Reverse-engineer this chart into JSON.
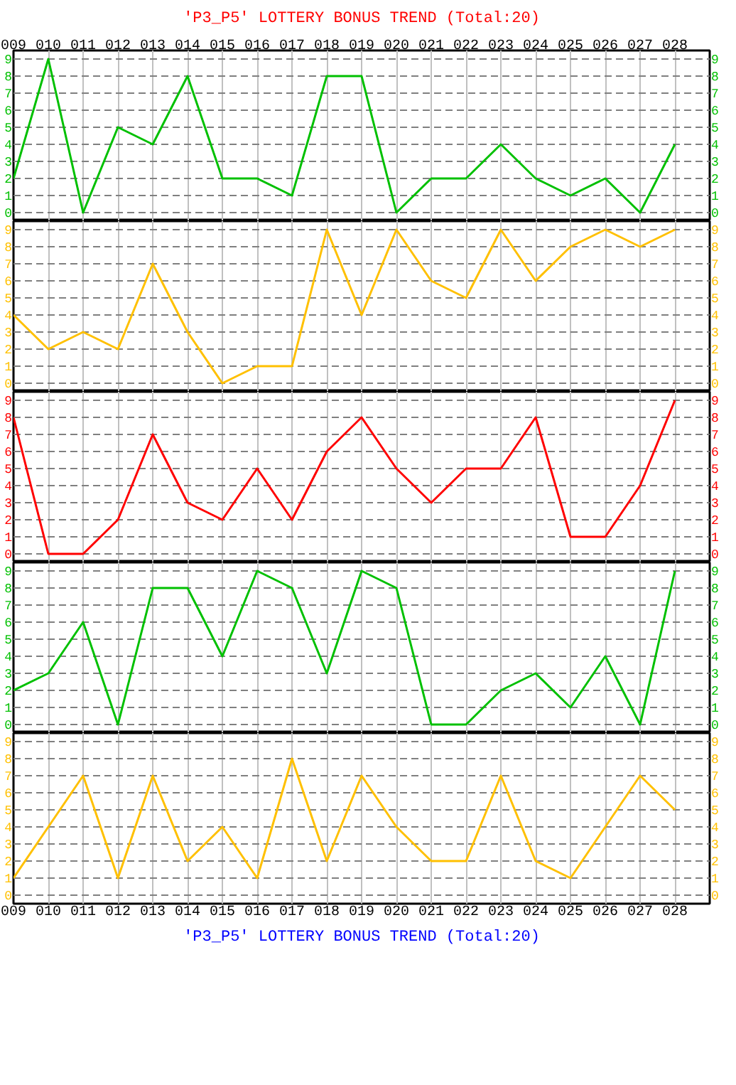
{
  "chart_data": [
    {
      "type": "line",
      "title": "'P3_P5' LOTTERY BONUS TREND (Total:20)",
      "categories": [
        "009",
        "010",
        "011",
        "012",
        "013",
        "014",
        "015",
        "016",
        "017",
        "018",
        "019",
        "020",
        "021",
        "022",
        "023",
        "024",
        "025",
        "026",
        "027",
        "028"
      ],
      "series": [
        {
          "color": "#00c000",
          "values": [
            2,
            9,
            0,
            5,
            4,
            8,
            2,
            2,
            1,
            8,
            8,
            0,
            2,
            2,
            4,
            2,
            1,
            2,
            0,
            4
          ]
        }
      ],
      "ylim": [
        -0.5,
        9.5
      ],
      "yticks": [
        0,
        1,
        2,
        3,
        4,
        5,
        6,
        7,
        8,
        9
      ],
      "y2lim": [
        -0.5,
        9.5
      ],
      "y2ticks": [
        0,
        1,
        2,
        3,
        4,
        5,
        6,
        7,
        8,
        9
      ],
      "grid": true
    },
    {
      "type": "line",
      "categories": [
        "009",
        "010",
        "011",
        "012",
        "013",
        "014",
        "015",
        "016",
        "017",
        "018",
        "019",
        "020",
        "021",
        "022",
        "023",
        "024",
        "025",
        "026",
        "027",
        "028"
      ],
      "series": [
        {
          "color": "#ffc000",
          "values": [
            4,
            2,
            3,
            2,
            7,
            3,
            0,
            1,
            1,
            9,
            4,
            9,
            6,
            5,
            9,
            6,
            8,
            9,
            8,
            9
          ]
        }
      ],
      "ylim": [
        -0.5,
        9.5
      ],
      "yticks": [
        0,
        1,
        2,
        3,
        4,
        5,
        6,
        7,
        8,
        9
      ],
      "y2lim": [
        -0.5,
        9.5
      ],
      "y2ticks": [
        0,
        1,
        2,
        3,
        4,
        5,
        6,
        7,
        8,
        9
      ],
      "grid": true,
      "tick_labels": "y"
    },
    {
      "type": "line",
      "categories": [
        "009",
        "010",
        "011",
        "012",
        "013",
        "014",
        "015",
        "016",
        "017",
        "018",
        "019",
        "020",
        "021",
        "022",
        "023",
        "024",
        "025",
        "026",
        "027",
        "028"
      ],
      "series": [
        {
          "color": "#ff0000",
          "values": [
            8,
            0,
            0,
            2,
            7,
            3,
            2,
            5,
            2,
            6,
            8,
            5,
            3,
            5,
            5,
            8,
            1,
            1,
            4,
            9
          ]
        }
      ],
      "ylim": [
        -0.5,
        9.5
      ],
      "yticks": [
        0,
        1,
        2,
        3,
        4,
        5,
        6,
        7,
        8,
        9
      ],
      "y2lim": [
        -0.5,
        9.5
      ],
      "y2ticks": [
        0,
        1,
        2,
        3,
        4,
        5,
        6,
        7,
        8,
        9
      ],
      "grid": true,
      "tick_labels": "y"
    },
    {
      "type": "line",
      "categories": [
        "009",
        "010",
        "011",
        "012",
        "013",
        "014",
        "015",
        "016",
        "017",
        "018",
        "019",
        "020",
        "021",
        "022",
        "023",
        "024",
        "025",
        "026",
        "027",
        "028"
      ],
      "series": [
        {
          "color": "#00c000",
          "values": [
            2,
            3,
            6,
            0,
            8,
            8,
            4,
            9,
            8,
            3,
            9,
            8,
            0,
            0,
            2,
            3,
            1,
            4,
            0,
            9
          ]
        }
      ],
      "ylim": [
        -0.5,
        9.5
      ],
      "yticks": [
        0,
        1,
        2,
        3,
        4,
        5,
        6,
        7,
        8,
        9
      ],
      "y2lim": [
        -0.5,
        9.5
      ],
      "y2ticks": [
        0,
        1,
        2,
        3,
        4,
        5,
        6,
        7,
        8,
        9
      ],
      "grid": true,
      "tick_labels": "y"
    },
    {
      "type": "line",
      "annotations": [
        "'P3_P5' LOTTERY BONUS TREND (Total:20)"
      ],
      "categories": [
        "009",
        "010",
        "011",
        "012",
        "013",
        "014",
        "015",
        "016",
        "017",
        "018",
        "019",
        "020",
        "021",
        "022",
        "023",
        "024",
        "025",
        "026",
        "027",
        "028"
      ],
      "series": [
        {
          "color": "#ffc000",
          "values": [
            1,
            4,
            7,
            1,
            7,
            2,
            4,
            1,
            8,
            2,
            7,
            4,
            2,
            2,
            7,
            2,
            1,
            4,
            7,
            5
          ]
        }
      ],
      "ylim": [
        -0.5,
        9.5
      ],
      "yticks": [
        0,
        1,
        2,
        3,
        4,
        5,
        6,
        7,
        8,
        9
      ],
      "y2lim": [
        -0.5,
        9.5
      ],
      "y2ticks": [
        0,
        1,
        2,
        3,
        4,
        5,
        6,
        7,
        8,
        9
      ],
      "grid": true
    }
  ]
}
